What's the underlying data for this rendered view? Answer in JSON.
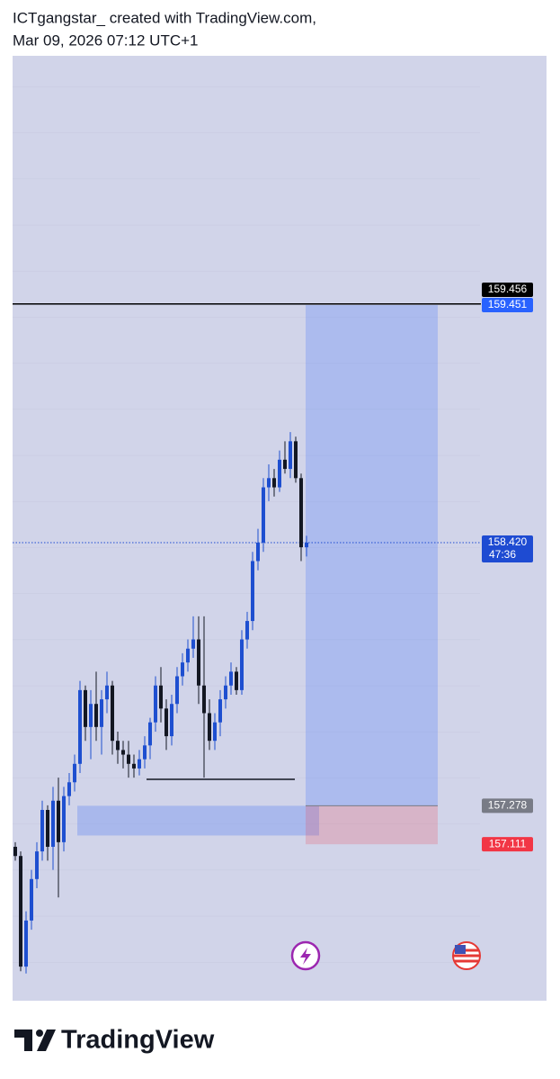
{
  "header": {
    "line1": "ICTgangstar_ created with TradingView.com,",
    "line2": "Mar 09, 2026 07:12 UTC+1"
  },
  "chart_data": {
    "type": "candlestick",
    "ylim": [
      156.432,
      160.533
    ],
    "up_color": "#1e4fd0",
    "down_color": "#131722",
    "ohlc": [
      [
        157.1,
        157.12,
        157.04,
        157.06
      ],
      [
        157.06,
        157.08,
        156.56,
        156.58
      ],
      [
        156.58,
        156.82,
        156.55,
        156.78
      ],
      [
        156.78,
        157.0,
        156.74,
        156.96
      ],
      [
        156.96,
        157.12,
        156.92,
        157.08
      ],
      [
        157.08,
        157.3,
        157.04,
        157.26
      ],
      [
        157.26,
        157.28,
        157.04,
        157.1
      ],
      [
        157.1,
        157.36,
        157.0,
        157.3
      ],
      [
        157.3,
        157.4,
        156.88,
        157.12
      ],
      [
        157.12,
        157.36,
        157.08,
        157.32
      ],
      [
        157.32,
        157.42,
        157.28,
        157.38
      ],
      [
        157.38,
        157.5,
        157.34,
        157.46
      ],
      [
        157.46,
        157.82,
        157.42,
        157.78
      ],
      [
        157.78,
        157.8,
        157.56,
        157.62
      ],
      [
        157.62,
        157.78,
        157.48,
        157.72
      ],
      [
        157.72,
        157.86,
        157.56,
        157.62
      ],
      [
        157.62,
        157.78,
        157.5,
        157.74
      ],
      [
        157.74,
        157.86,
        157.68,
        157.8
      ],
      [
        157.8,
        157.82,
        157.5,
        157.56
      ],
      [
        157.56,
        157.6,
        157.46,
        157.52
      ],
      [
        157.52,
        157.56,
        157.44,
        157.5
      ],
      [
        157.5,
        157.56,
        157.4,
        157.46
      ],
      [
        157.46,
        157.5,
        157.4,
        157.44
      ],
      [
        157.44,
        157.52,
        157.41,
        157.48
      ],
      [
        157.48,
        157.58,
        157.44,
        157.54
      ],
      [
        157.54,
        157.66,
        157.48,
        157.64
      ],
      [
        157.64,
        157.84,
        157.6,
        157.8
      ],
      [
        157.8,
        157.88,
        157.64,
        157.7
      ],
      [
        157.7,
        157.74,
        157.52,
        157.58
      ],
      [
        157.58,
        157.76,
        157.54,
        157.72
      ],
      [
        157.72,
        157.88,
        157.68,
        157.84
      ],
      [
        157.84,
        157.94,
        157.8,
        157.9
      ],
      [
        157.9,
        158.0,
        157.86,
        157.96
      ],
      [
        157.96,
        158.1,
        157.92,
        158.0
      ],
      [
        158.0,
        158.1,
        157.72,
        157.8
      ],
      [
        157.8,
        158.1,
        157.4,
        157.68
      ],
      [
        157.68,
        157.74,
        157.52,
        157.56
      ],
      [
        157.56,
        157.68,
        157.52,
        157.64
      ],
      [
        157.64,
        157.78,
        157.58,
        157.74
      ],
      [
        157.74,
        157.84,
        157.7,
        157.8
      ],
      [
        157.8,
        157.9,
        157.76,
        157.86
      ],
      [
        157.86,
        157.88,
        157.76,
        157.78
      ],
      [
        157.78,
        158.04,
        157.76,
        158.0
      ],
      [
        158.0,
        158.12,
        157.96,
        158.08
      ],
      [
        158.08,
        158.38,
        158.04,
        158.34
      ],
      [
        158.34,
        158.48,
        158.3,
        158.42
      ],
      [
        158.42,
        158.7,
        158.38,
        158.66
      ],
      [
        158.66,
        158.76,
        158.6,
        158.7
      ],
      [
        158.7,
        158.74,
        158.62,
        158.66
      ],
      [
        158.66,
        158.82,
        158.64,
        158.78
      ],
      [
        158.78,
        158.86,
        158.72,
        158.74
      ],
      [
        158.74,
        158.9,
        158.7,
        158.86
      ],
      [
        158.86,
        158.88,
        158.68,
        158.7
      ],
      [
        158.7,
        158.72,
        158.34,
        158.4
      ],
      [
        158.4,
        158.45,
        158.36,
        158.42
      ]
    ],
    "hline": {
      "value": 159.456,
      "color": "#000000"
    },
    "position": {
      "target": 159.451,
      "entry": 157.278,
      "stop": 157.111,
      "target_color": "#2962ff",
      "entry_color": "#787b86",
      "stop_color": "#f23645"
    },
    "last": {
      "value": 158.42,
      "label": "158.420",
      "countdown": "47:36",
      "color": "#1e4bd2"
    },
    "zone": [
      157.149,
      157.278
    ],
    "level": 157.393
  },
  "footer": "TradingView"
}
